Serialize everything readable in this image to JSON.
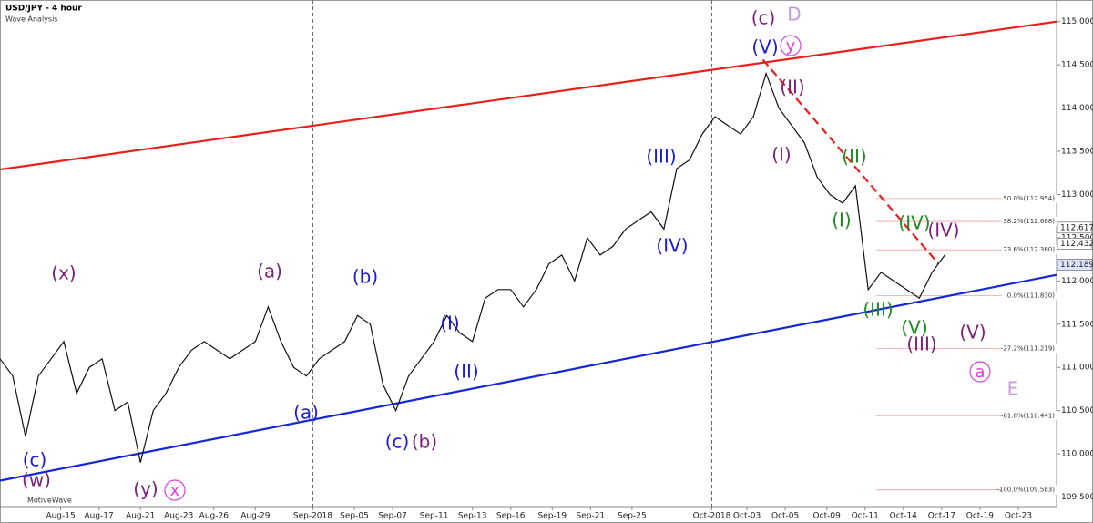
{
  "chart_data": {
    "type": "line",
    "title": "USD/JPY - 4 hour",
    "subtitle": "Wave Analysis",
    "footer": "MotiveWave",
    "xlim": [
      0,
      331
    ],
    "ylim": [
      109.39,
      115.25
    ],
    "yticks": [
      {
        "value": 109.5,
        "label": "109.500"
      },
      {
        "value": 110,
        "label": "110.000"
      },
      {
        "value": 110.5,
        "label": "110.500"
      },
      {
        "value": 111,
        "label": "111.000"
      },
      {
        "value": 111.5,
        "label": "111.500"
      },
      {
        "value": 112,
        "label": "112.000"
      },
      {
        "value": 112.5,
        "label": "112.500"
      },
      {
        "value": 113,
        "label": "113.000"
      },
      {
        "value": 113.5,
        "label": "113.500"
      },
      {
        "value": 114,
        "label": "114.000"
      },
      {
        "value": 114.5,
        "label": "114.500"
      },
      {
        "value": 115,
        "label": "115.000"
      }
    ],
    "xticks": [
      {
        "value": 19,
        "label": "Aug-15"
      },
      {
        "value": 31,
        "label": "Aug-17"
      },
      {
        "value": 44,
        "label": "Aug-21"
      },
      {
        "value": 56,
        "label": "Aug-23"
      },
      {
        "value": 67,
        "label": "Aug-26"
      },
      {
        "value": 80,
        "label": "Aug-29"
      },
      {
        "value": 98,
        "label": "Sep-2018"
      },
      {
        "value": 111,
        "label": "Sep-05"
      },
      {
        "value": 123,
        "label": "Sep-07"
      },
      {
        "value": 136,
        "label": "Sep-11"
      },
      {
        "value": 148,
        "label": "Sep-13"
      },
      {
        "value": 160,
        "label": "Sep-16"
      },
      {
        "value": 173,
        "label": "Sep-19"
      },
      {
        "value": 185,
        "label": "Sep-21"
      },
      {
        "value": 198,
        "label": "Sep-25"
      },
      {
        "value": 223,
        "label": "Oct-2018"
      },
      {
        "value": 234,
        "label": "Oct-03"
      },
      {
        "value": 246,
        "label": "Oct-05"
      },
      {
        "value": 259,
        "label": "Oct-09"
      },
      {
        "value": 271,
        "label": "Oct-11"
      },
      {
        "value": 283,
        "label": "Oct-14"
      },
      {
        "value": 295,
        "label": "Oct-17"
      },
      {
        "value": 307,
        "label": "Oct-19"
      },
      {
        "value": 319,
        "label": "Oct-23"
      }
    ],
    "series": [
      {
        "color": "#111111",
        "x": [
          0,
          4,
          8,
          12,
          16,
          20,
          24,
          28,
          32,
          36,
          40,
          44,
          48,
          52,
          56,
          60,
          64,
          68,
          72,
          76,
          80,
          84,
          88,
          92,
          96,
          100,
          104,
          108,
          112,
          116,
          120,
          124,
          128,
          132,
          136,
          140,
          144,
          148,
          152,
          156,
          160,
          164,
          168,
          172,
          176,
          180,
          184,
          188,
          192,
          196,
          200,
          204,
          208,
          212,
          216,
          220,
          224,
          228,
          232,
          236,
          240,
          244,
          248,
          252,
          256,
          260,
          264,
          268,
          272,
          276,
          280,
          284,
          288,
          292,
          296
        ],
        "values": [
          111.1,
          110.9,
          110.2,
          110.9,
          111.1,
          111.3,
          110.7,
          111.0,
          111.1,
          110.5,
          110.6,
          109.9,
          110.5,
          110.7,
          111.0,
          111.2,
          111.3,
          111.2,
          111.1,
          111.2,
          111.3,
          111.7,
          111.3,
          111.0,
          110.9,
          111.1,
          111.2,
          111.3,
          111.6,
          111.5,
          110.8,
          110.5,
          110.9,
          111.1,
          111.3,
          111.6,
          111.4,
          111.3,
          111.8,
          111.9,
          111.9,
          111.7,
          111.9,
          112.2,
          112.3,
          112.0,
          112.5,
          112.3,
          112.4,
          112.6,
          112.7,
          112.8,
          112.6,
          113.3,
          113.4,
          113.7,
          113.9,
          113.8,
          113.7,
          113.9,
          114.4,
          114.0,
          113.8,
          113.6,
          113.2,
          113.0,
          112.9,
          113.1,
          111.9,
          112.1,
          112.0,
          111.9,
          111.8,
          112.1,
          112.3
        ]
      }
    ],
    "trendlines": [
      {
        "color": "#e8201c",
        "x": [
          0,
          331
        ],
        "values": [
          113.29,
          115.0
        ]
      },
      {
        "color": "#1427d8",
        "x": [
          0,
          331
        ],
        "values": [
          109.69,
          112.07
        ]
      },
      {
        "color": "#e8201c",
        "dashed": true,
        "x": [
          239,
          294
        ],
        "values": [
          114.56,
          112.2
        ]
      }
    ],
    "fib_levels": [
      {
        "value": 112.954,
        "label": "50.0%(112.954)"
      },
      {
        "value": 112.688,
        "label": "38.2%(112.688)"
      },
      {
        "value": 112.36,
        "label": "23.6%(112.360)"
      },
      {
        "value": 111.83,
        "label": "0.0%(111.830)"
      },
      {
        "value": 111.219,
        "label": "-27.2%(111.219)"
      },
      {
        "value": 110.441,
        "label": "-61.8%(110.441)"
      },
      {
        "value": 109.583,
        "label": "-100.0%(109.583)"
      }
    ],
    "price_tags": [
      112.617,
      112.432,
      112.189
    ],
    "annotations": [
      {
        "text": "(x)",
        "color": "#7b1f7b"
      },
      {
        "text": "(c)",
        "color": "#1a1adb"
      },
      {
        "text": "(w)",
        "color": "#7b1f7b"
      },
      {
        "text": "(y)",
        "color": "#7b1f7b"
      },
      {
        "text": "x",
        "color": "#e040e0"
      },
      {
        "text": "(a)",
        "color": "#7b1f7b"
      },
      {
        "text": "(a)",
        "color": "#1a1adb"
      },
      {
        "text": "(b)",
        "color": "#1a1adb"
      },
      {
        "text": "(I)",
        "color": "#1a1adb"
      },
      {
        "text": "(II)",
        "color": "#1a1adb"
      },
      {
        "text": "(c)",
        "color": "#1a1adb"
      },
      {
        "text": "(b)",
        "color": "#7b1f7b"
      },
      {
        "text": "(III)",
        "color": "#1a1adb"
      },
      {
        "text": "(IV)",
        "color": "#1a1adb"
      },
      {
        "text": "(c)",
        "color": "#7b1f7b"
      },
      {
        "text": "D",
        "color": "#c79ae0"
      },
      {
        "text": "(V)",
        "color": "#1a1adb"
      },
      {
        "text": "y",
        "color": "#e040e0"
      },
      {
        "text": "(II)",
        "color": "#7b1f7b"
      },
      {
        "text": "(I)",
        "color": "#7b1f7b"
      },
      {
        "text": "(II)",
        "color": "#1f8a1f"
      },
      {
        "text": "(I)",
        "color": "#1f8a1f"
      },
      {
        "text": "(IV)",
        "color": "#1f8a1f"
      },
      {
        "text": "(IV)",
        "color": "#7b1f7b"
      },
      {
        "text": "(III)",
        "color": "#1f8a1f"
      },
      {
        "text": "(V)",
        "color": "#1f8a1f"
      },
      {
        "text": "(III)",
        "color": "#7b1f7b"
      },
      {
        "text": "(V)",
        "color": "#7b1f7b"
      },
      {
        "text": "a",
        "color": "#e040e0"
      },
      {
        "text": "E",
        "color": "#c79ae0"
      }
    ]
  }
}
